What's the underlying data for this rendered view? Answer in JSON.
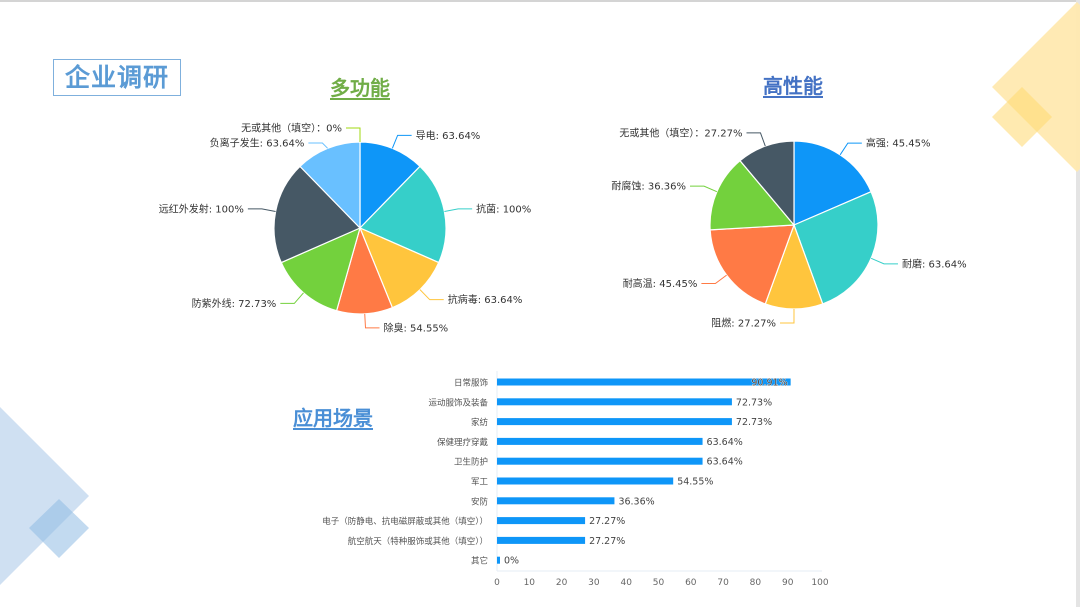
{
  "page": {
    "title": "企业调研"
  },
  "sections": {
    "multi_function": "多功能",
    "high_performance": "高性能",
    "application": "应用场景"
  },
  "colors": {
    "title_blue": "#5b9bd5",
    "multi_title_green": "#70ad47",
    "perf_title_blue": "#4472c4",
    "bar_blue": "#0e96f8"
  },
  "chart_data": [
    {
      "type": "pie",
      "title": "多功能",
      "labels": [
        "导电",
        "抗菌",
        "抗病毒",
        "除臭",
        "防紫外线",
        "远红外发射",
        "负离子发生",
        "无或其他（填空）"
      ],
      "values": [
        63.64,
        100,
        63.64,
        54.55,
        72.73,
        100,
        63.64,
        0
      ],
      "value_labels": [
        "63.64%",
        "100%",
        "63.64%",
        "54.55%",
        "72.73%",
        "100%",
        "63.64%",
        "0%"
      ],
      "colors": [
        "#0e96f8",
        "#36cfc9",
        "#ffc53d",
        "#ff7a45",
        "#73d13d",
        "#465865",
        "#69c0ff",
        "#a0d911"
      ],
      "label_separators": [
        ": ",
        ": ",
        ": ",
        ": ",
        ": ",
        ": ",
        ": ",
        "："
      ]
    },
    {
      "type": "pie",
      "title": "高性能",
      "labels": [
        "高强",
        "耐磨",
        "阻燃",
        "耐高温",
        "耐腐蚀",
        "无或其他（填空）"
      ],
      "values": [
        45.45,
        63.64,
        27.27,
        45.45,
        36.36,
        27.27
      ],
      "value_labels": [
        "45.45%",
        "63.64%",
        "27.27%",
        "45.45%",
        "36.36%",
        "27.27%"
      ],
      "colors": [
        "#0e96f8",
        "#36cfc9",
        "#ffc53d",
        "#ff7a45",
        "#73d13d",
        "#465865"
      ],
      "label_separators": [
        ": ",
        ": ",
        ": ",
        ": ",
        ": ",
        "："
      ]
    },
    {
      "type": "bar",
      "orientation": "horizontal",
      "title": "应用场景",
      "categories": [
        "日常服饰",
        "运动服饰及装备",
        "家纺",
        "保健理疗穿戴",
        "卫生防护",
        "军工",
        "安防",
        "电子（防静电、抗电磁屏蔽或其他（填空））",
        "航空航天（特种服饰或其他（填空））",
        "其它"
      ],
      "values": [
        90.91,
        72.73,
        72.73,
        63.64,
        63.64,
        54.55,
        36.36,
        27.27,
        27.27,
        0
      ],
      "value_labels": [
        "90.91%",
        "72.73%",
        "72.73%",
        "63.64%",
        "63.64%",
        "54.55%",
        "36.36%",
        "27.27%",
        "27.27%",
        "0%"
      ],
      "xlim": [
        0,
        100
      ],
      "xticks": [
        "0",
        "10",
        "20",
        "30",
        "40",
        "50",
        "60",
        "70",
        "80",
        "90",
        "100"
      ],
      "xlabel": "",
      "ylabel": "",
      "grid": false
    }
  ]
}
